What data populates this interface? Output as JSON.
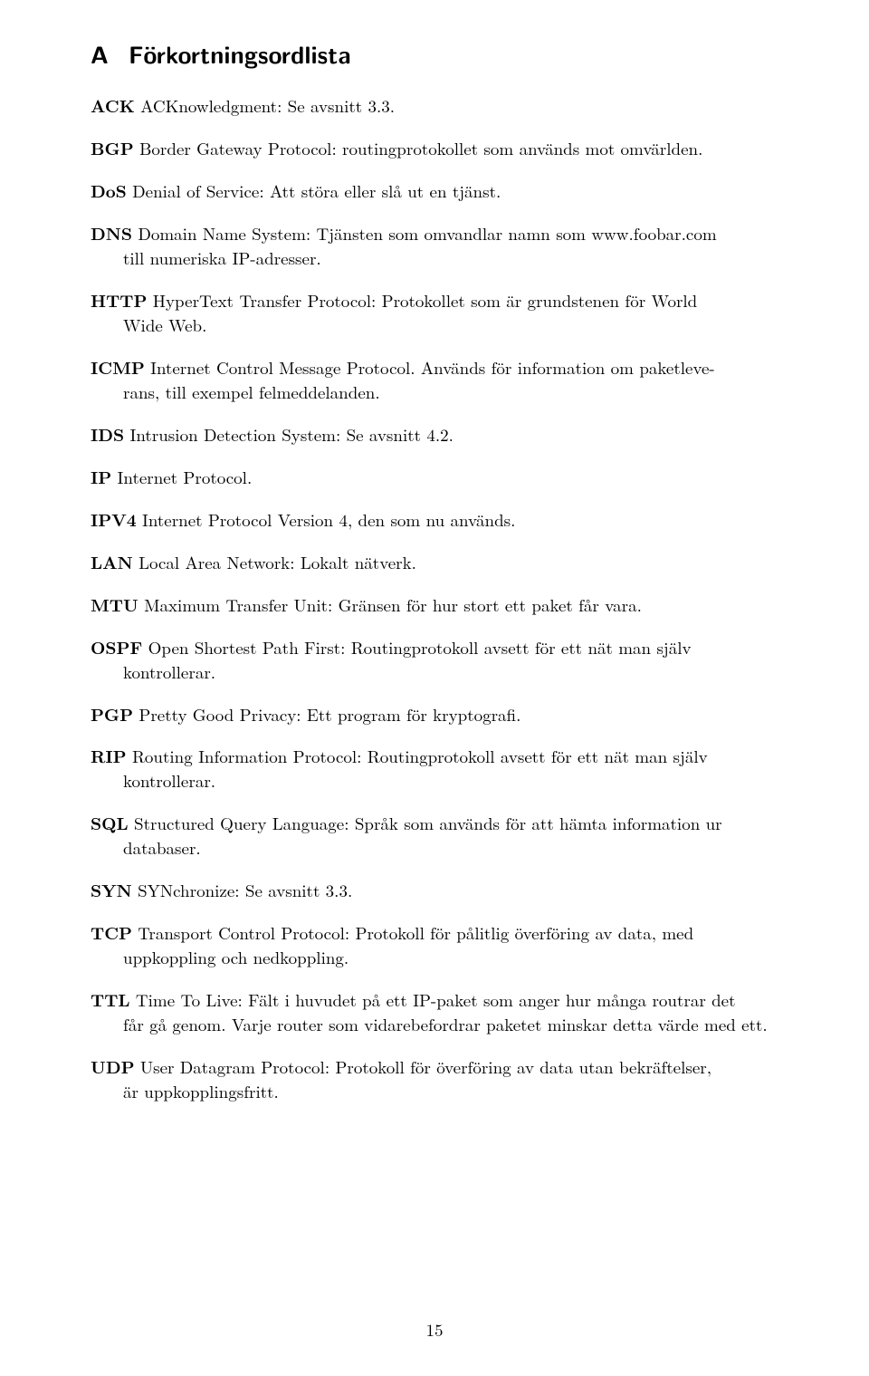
{
  "section": {
    "letter": "A",
    "title": "Förkortningsordlista"
  },
  "entries": [
    {
      "term": "ACK",
      "body": "ACKnowledgment: Se avsnitt 3.3."
    },
    {
      "term": "BGP",
      "body": "Border Gateway Protocol: routingprotokollet som används mot omvärlden."
    },
    {
      "term": "DoS",
      "body": "Denial of Service: Att störa eller slå ut en tjänst."
    },
    {
      "term": "DNS",
      "body": "Domain Name System: Tjänsten som omvandlar namn som www.foobar.com till numeriska IP-adresser.",
      "cont": "till numeriska IP-adresser.",
      "first": "Domain Name System: Tjänsten som omvandlar namn som www.foobar.com"
    },
    {
      "term": "HTTP",
      "body": "HyperText Transfer Protocol: Protokollet som är grundstenen för World Wide Web.",
      "cont": "Wide Web.",
      "first": "HyperText Transfer Protocol: Protokollet som är grundstenen för World"
    },
    {
      "term": "ICMP",
      "body": "Internet Control Message Protocol. Används för information om paketleverans, till exempel felmeddelanden.",
      "cont": "rans, till exempel felmeddelanden.",
      "first": "Internet Control Message Protocol. Används för information om paketleve-"
    },
    {
      "term": "IDS",
      "body": "Intrusion Detection System: Se avsnitt 4.2."
    },
    {
      "term": "IP",
      "body": "Internet Protocol."
    },
    {
      "term": "IPV4",
      "body": "Internet Protocol Version 4, den som nu används."
    },
    {
      "term": "LAN",
      "body": "Local Area Network: Lokalt nätverk."
    },
    {
      "term": "MTU",
      "body": "Maximum Transfer Unit: Gränsen för hur stort ett paket får vara."
    },
    {
      "term": "OSPF",
      "body": "Open Shortest Path First: Routingprotokoll avsett för ett nät man själv kontrollerar.",
      "cont": "kontrollerar.",
      "first": "Open Shortest Path First: Routingprotokoll avsett för ett nät man själv"
    },
    {
      "term": "PGP",
      "body": "Pretty Good Privacy: Ett program för kryptografi."
    },
    {
      "term": "RIP",
      "body": "Routing Information Protocol: Routingprotokoll avsett för ett nät man själv kontrollerar.",
      "cont": "kontrollerar.",
      "first": "Routing Information Protocol: Routingprotokoll avsett för ett nät man själv"
    },
    {
      "term": "SQL",
      "body": "Structured Query Language: Språk som används för att hämta information ur databaser.",
      "cont": "databaser.",
      "first": "Structured Query Language: Språk som används för att hämta information ur"
    },
    {
      "term": "SYN",
      "body": "SYNchronize: Se avsnitt 3.3."
    },
    {
      "term": "TCP",
      "body": "Transport Control Protocol: Protokoll för pålitlig överföring av data, med uppkoppling och nedkoppling.",
      "cont": "uppkoppling och nedkoppling.",
      "first": "Transport Control Protocol: Protokoll för pålitlig överföring av data, med"
    },
    {
      "term": "TTL",
      "body": "Time To Live: Fält i huvudet på ett IP-paket som anger hur många routrar det får gå genom. Varje router som vidarebefordrar paketet minskar detta värde med ett.",
      "cont": "får gå genom. Varje router som vidarebefordrar paketet minskar detta värde med ett.",
      "first": "Time To Live: Fält i huvudet på ett IP-paket som anger hur många routrar det"
    },
    {
      "term": "UDP",
      "body": "User Datagram Protocol: Protokoll för överföring av data utan bekräftelser, är uppkopplingsfritt.",
      "cont": "är uppkopplingsfritt.",
      "first": "User Datagram Protocol: Protokoll för överföring av data utan bekräftelser,"
    }
  ],
  "page_number": "15"
}
